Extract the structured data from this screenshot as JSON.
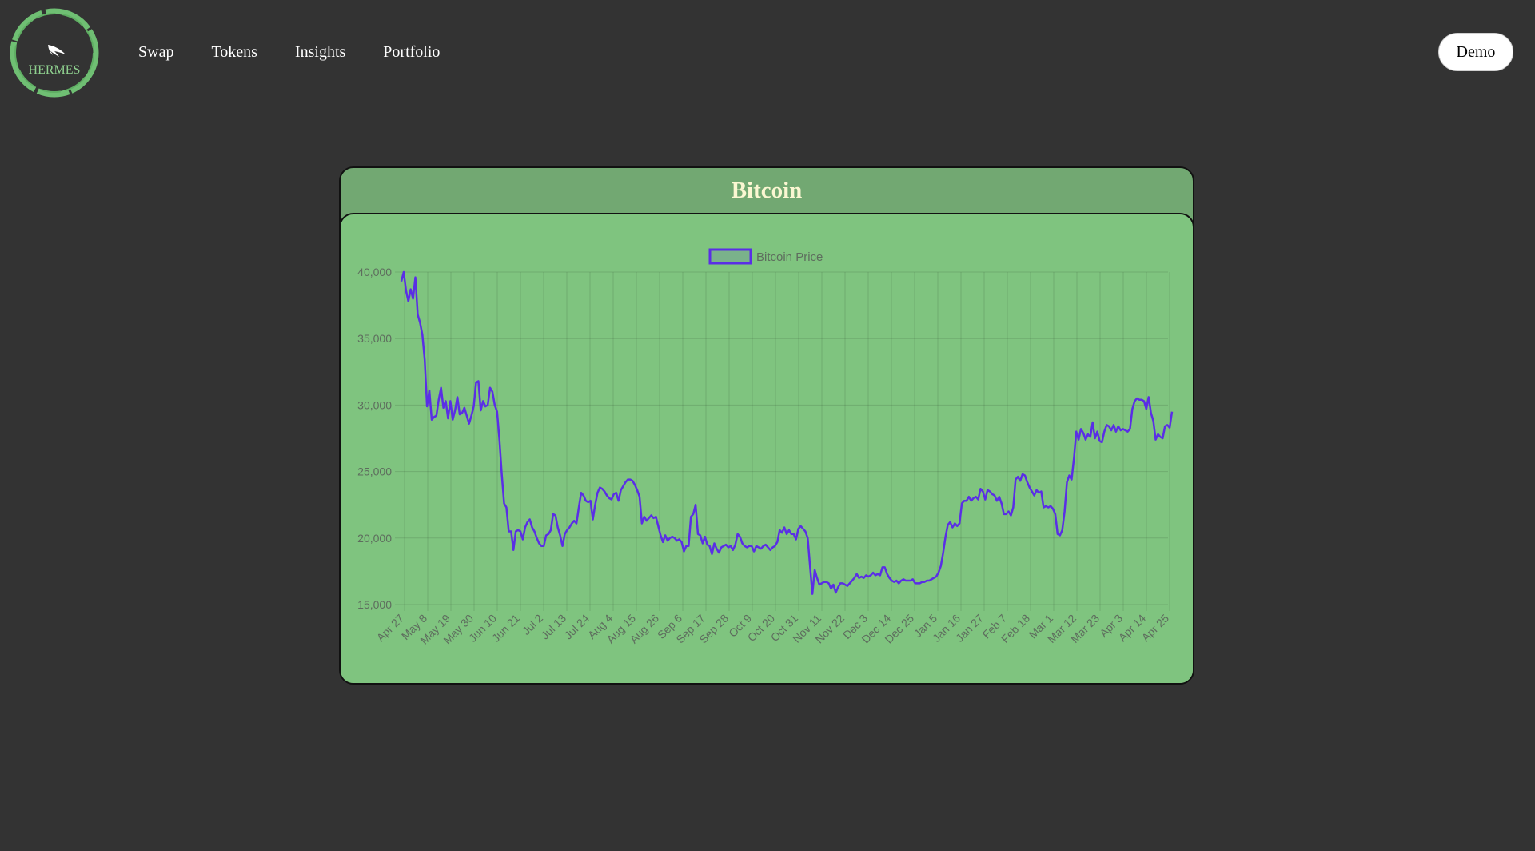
{
  "brand": {
    "logo_text": "HERMES",
    "accent_color": "#6fbf73"
  },
  "nav": {
    "items": [
      {
        "label": "Swap"
      },
      {
        "label": "Tokens"
      },
      {
        "label": "Insights"
      },
      {
        "label": "Portfolio"
      }
    ],
    "demo_label": "Demo"
  },
  "card": {
    "title": "Bitcoin",
    "header_color": "#72a872",
    "panel_color": "#7fc47f"
  },
  "chart_data": {
    "type": "line",
    "legend": [
      "Bitcoin Price"
    ],
    "legend_placement": "top-center",
    "grid": true,
    "line_color": "#5a2ee6",
    "ylim": [
      15000,
      40000
    ],
    "yticks": [
      15000,
      20000,
      25000,
      30000,
      35000,
      40000
    ],
    "ytick_labels": [
      "15,000",
      "20,000",
      "25,000",
      "30,000",
      "35,000",
      "40,000"
    ],
    "x_tick_labels": [
      "Apr 27",
      "May 8",
      "May 19",
      "May 30",
      "Jun 10",
      "Jun 21",
      "Jul 2",
      "Jul 13",
      "Jul 24",
      "Aug 4",
      "Aug 15",
      "Aug 26",
      "Sep 6",
      "Sep 17",
      "Sep 28",
      "Oct 9",
      "Oct 20",
      "Oct 31",
      "Nov 11",
      "Nov 22",
      "Dec 3",
      "Dec 14",
      "Dec 25",
      "Jan 5",
      "Jan 16",
      "Jan 27",
      "Feb 7",
      "Feb 18",
      "Mar 1",
      "Mar 12",
      "Mar 23",
      "Apr 3",
      "Apr 14",
      "Apr 25"
    ],
    "series": [
      {
        "name": "Bitcoin Price",
        "x_day_step": 1,
        "values": [
          39300,
          40000,
          38600,
          37800,
          38700,
          38000,
          39600,
          36800,
          36200,
          35300,
          33400,
          29900,
          31100,
          28900,
          29100,
          29200,
          30400,
          31300,
          29800,
          30300,
          29000,
          30300,
          28900,
          29600,
          30600,
          29300,
          29400,
          29800,
          29200,
          28600,
          29200,
          29900,
          31700,
          31800,
          29600,
          30300,
          29900,
          30000,
          31300,
          31000,
          30000,
          29500,
          27400,
          24800,
          22600,
          22300,
          20500,
          20500,
          19100,
          20500,
          20600,
          20500,
          19900,
          20800,
          21200,
          21400,
          20800,
          20500,
          20000,
          19600,
          19400,
          19400,
          20200,
          20300,
          20600,
          21800,
          21700,
          20800,
          20200,
          19400,
          20300,
          20600,
          20800,
          21100,
          21300,
          21100,
          22300,
          23400,
          23200,
          22800,
          22700,
          22800,
          21400,
          22500,
          23400,
          23800,
          23700,
          23500,
          23200,
          23000,
          22900,
          23300,
          23400,
          22800,
          23600,
          23900,
          24200,
          24400,
          24400,
          24300,
          24000,
          23600,
          23100,
          21100,
          21600,
          21300,
          21500,
          21700,
          21500,
          21600,
          20900,
          20200,
          19700,
          20200,
          19800,
          20000,
          20100,
          20000,
          19800,
          19900,
          19700,
          19000,
          19400,
          19400,
          21600,
          21800,
          22500,
          20300,
          20200,
          19600,
          20100,
          19500,
          19400,
          18800,
          19600,
          19200,
          18900,
          19300,
          19400,
          19500,
          19300,
          19400,
          19100,
          19500,
          20300,
          20100,
          19600,
          19400,
          19300,
          19400,
          19400,
          19000,
          19400,
          19300,
          19200,
          19400,
          19500,
          19300,
          19100,
          19300,
          19400,
          19700,
          20600,
          20400,
          20800,
          20300,
          20600,
          20300,
          20300,
          19900,
          20700,
          20900,
          20700,
          20500,
          20000,
          17900,
          15800,
          17600,
          17000,
          16500,
          16600,
          16700,
          16700,
          16600,
          16200,
          16500,
          15900,
          16300,
          16600,
          16600,
          16500,
          16400,
          16600,
          16800,
          17000,
          17300,
          17000,
          17100,
          17000,
          17200,
          17100,
          17200,
          17400,
          17200,
          17300,
          17200,
          17800,
          17800,
          17300,
          17000,
          16800,
          16700,
          16800,
          16600,
          16800,
          16900,
          16800,
          16800,
          16800,
          16900,
          16600,
          16600,
          16600,
          16700,
          16700,
          16800,
          16800,
          16900,
          17000,
          17100,
          17400,
          17900,
          18900,
          20100,
          21000,
          21200,
          20800,
          21100,
          20900,
          21100,
          22600,
          22800,
          22800,
          23100,
          22800,
          23000,
          23100,
          22900,
          23700,
          23500,
          22900,
          23600,
          23500,
          23300,
          23200,
          22800,
          23100,
          22600,
          21800,
          21800,
          22000,
          21700,
          22300,
          24400,
          24600,
          24300,
          24800,
          24700,
          24200,
          23800,
          23500,
          23200,
          23600,
          23400,
          23500,
          22300,
          22400,
          22300,
          22400,
          22200,
          21800,
          20300,
          20200,
          20600,
          22000,
          24200,
          24700,
          24400,
          26000,
          28000,
          27400,
          28200,
          27900,
          27400,
          27800,
          27600,
          28700,
          27500,
          28000,
          27300,
          27200,
          28000,
          28500,
          28400,
          28100,
          28500,
          28000,
          28400,
          28100,
          28200,
          28100,
          28000,
          28200,
          29700,
          30300,
          30500,
          30400,
          30400,
          30300,
          29700,
          30600,
          29400,
          28800,
          27400,
          27800,
          27600,
          27500,
          28400,
          28500,
          28300,
          29500
        ]
      }
    ]
  }
}
